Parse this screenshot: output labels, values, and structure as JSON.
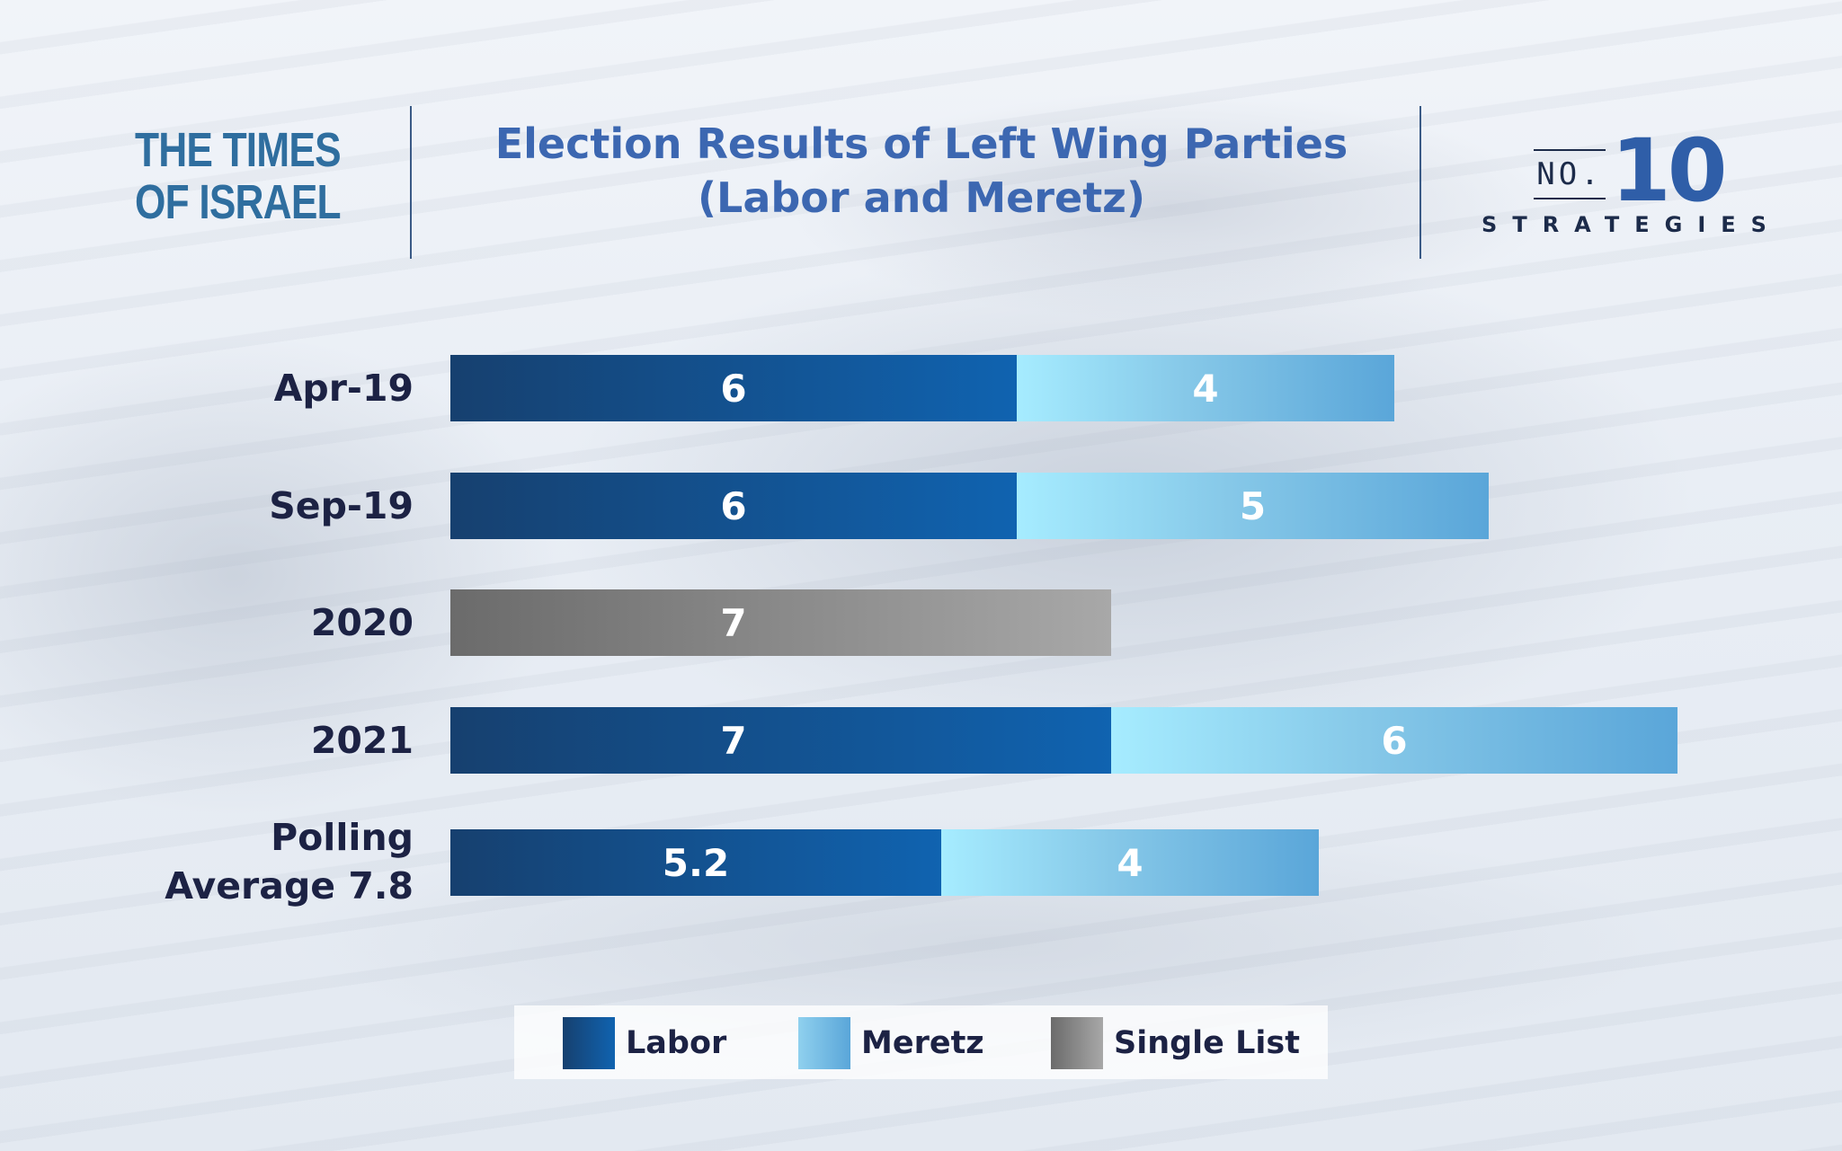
{
  "logos": {
    "times_of_israel": {
      "line1": "THE TIMES",
      "line2": "OF ISRAEL"
    },
    "no10": {
      "no": "NO.",
      "ten": "10",
      "strategies": "STRATEGIES"
    }
  },
  "colors": {
    "title": "#3c67b1",
    "labor": [
      "#16406f",
      "#1063b0"
    ],
    "meretz": [
      "#a6ecff",
      "#5aa6d9"
    ],
    "single_list": [
      "#6b6b6b",
      "#a8a8a8"
    ]
  },
  "chart_data": {
    "type": "bar",
    "orientation": "horizontal",
    "stacked": true,
    "title": "Election Results of Left Wing Parties (Labor and Meretz)",
    "title_lines": [
      "Election Results of Left Wing Parties",
      "(Labor and Meretz)"
    ],
    "categories": [
      "Apr-19",
      "Sep-19",
      "2020",
      "2021",
      "Polling Average 7.8"
    ],
    "category_lines": [
      [
        "Apr-19"
      ],
      [
        "Sep-19"
      ],
      [
        "2020"
      ],
      [
        "2021"
      ],
      [
        "Polling",
        "Average 7.8"
      ]
    ],
    "series": [
      {
        "name": "Labor",
        "values": [
          6,
          6,
          null,
          7,
          5.2
        ],
        "value_labels": [
          "6",
          "6",
          "",
          "7",
          "5.2"
        ]
      },
      {
        "name": "Meretz",
        "values": [
          4,
          5,
          null,
          6,
          4
        ],
        "value_labels": [
          "4",
          "5",
          "",
          "6",
          "4"
        ]
      },
      {
        "name": "Single List",
        "values": [
          null,
          null,
          7,
          null,
          null
        ],
        "value_labels": [
          "",
          "",
          "7",
          "",
          ""
        ]
      }
    ],
    "xlim": [
      0,
      13
    ],
    "grid": false,
    "legend": "bottom"
  }
}
